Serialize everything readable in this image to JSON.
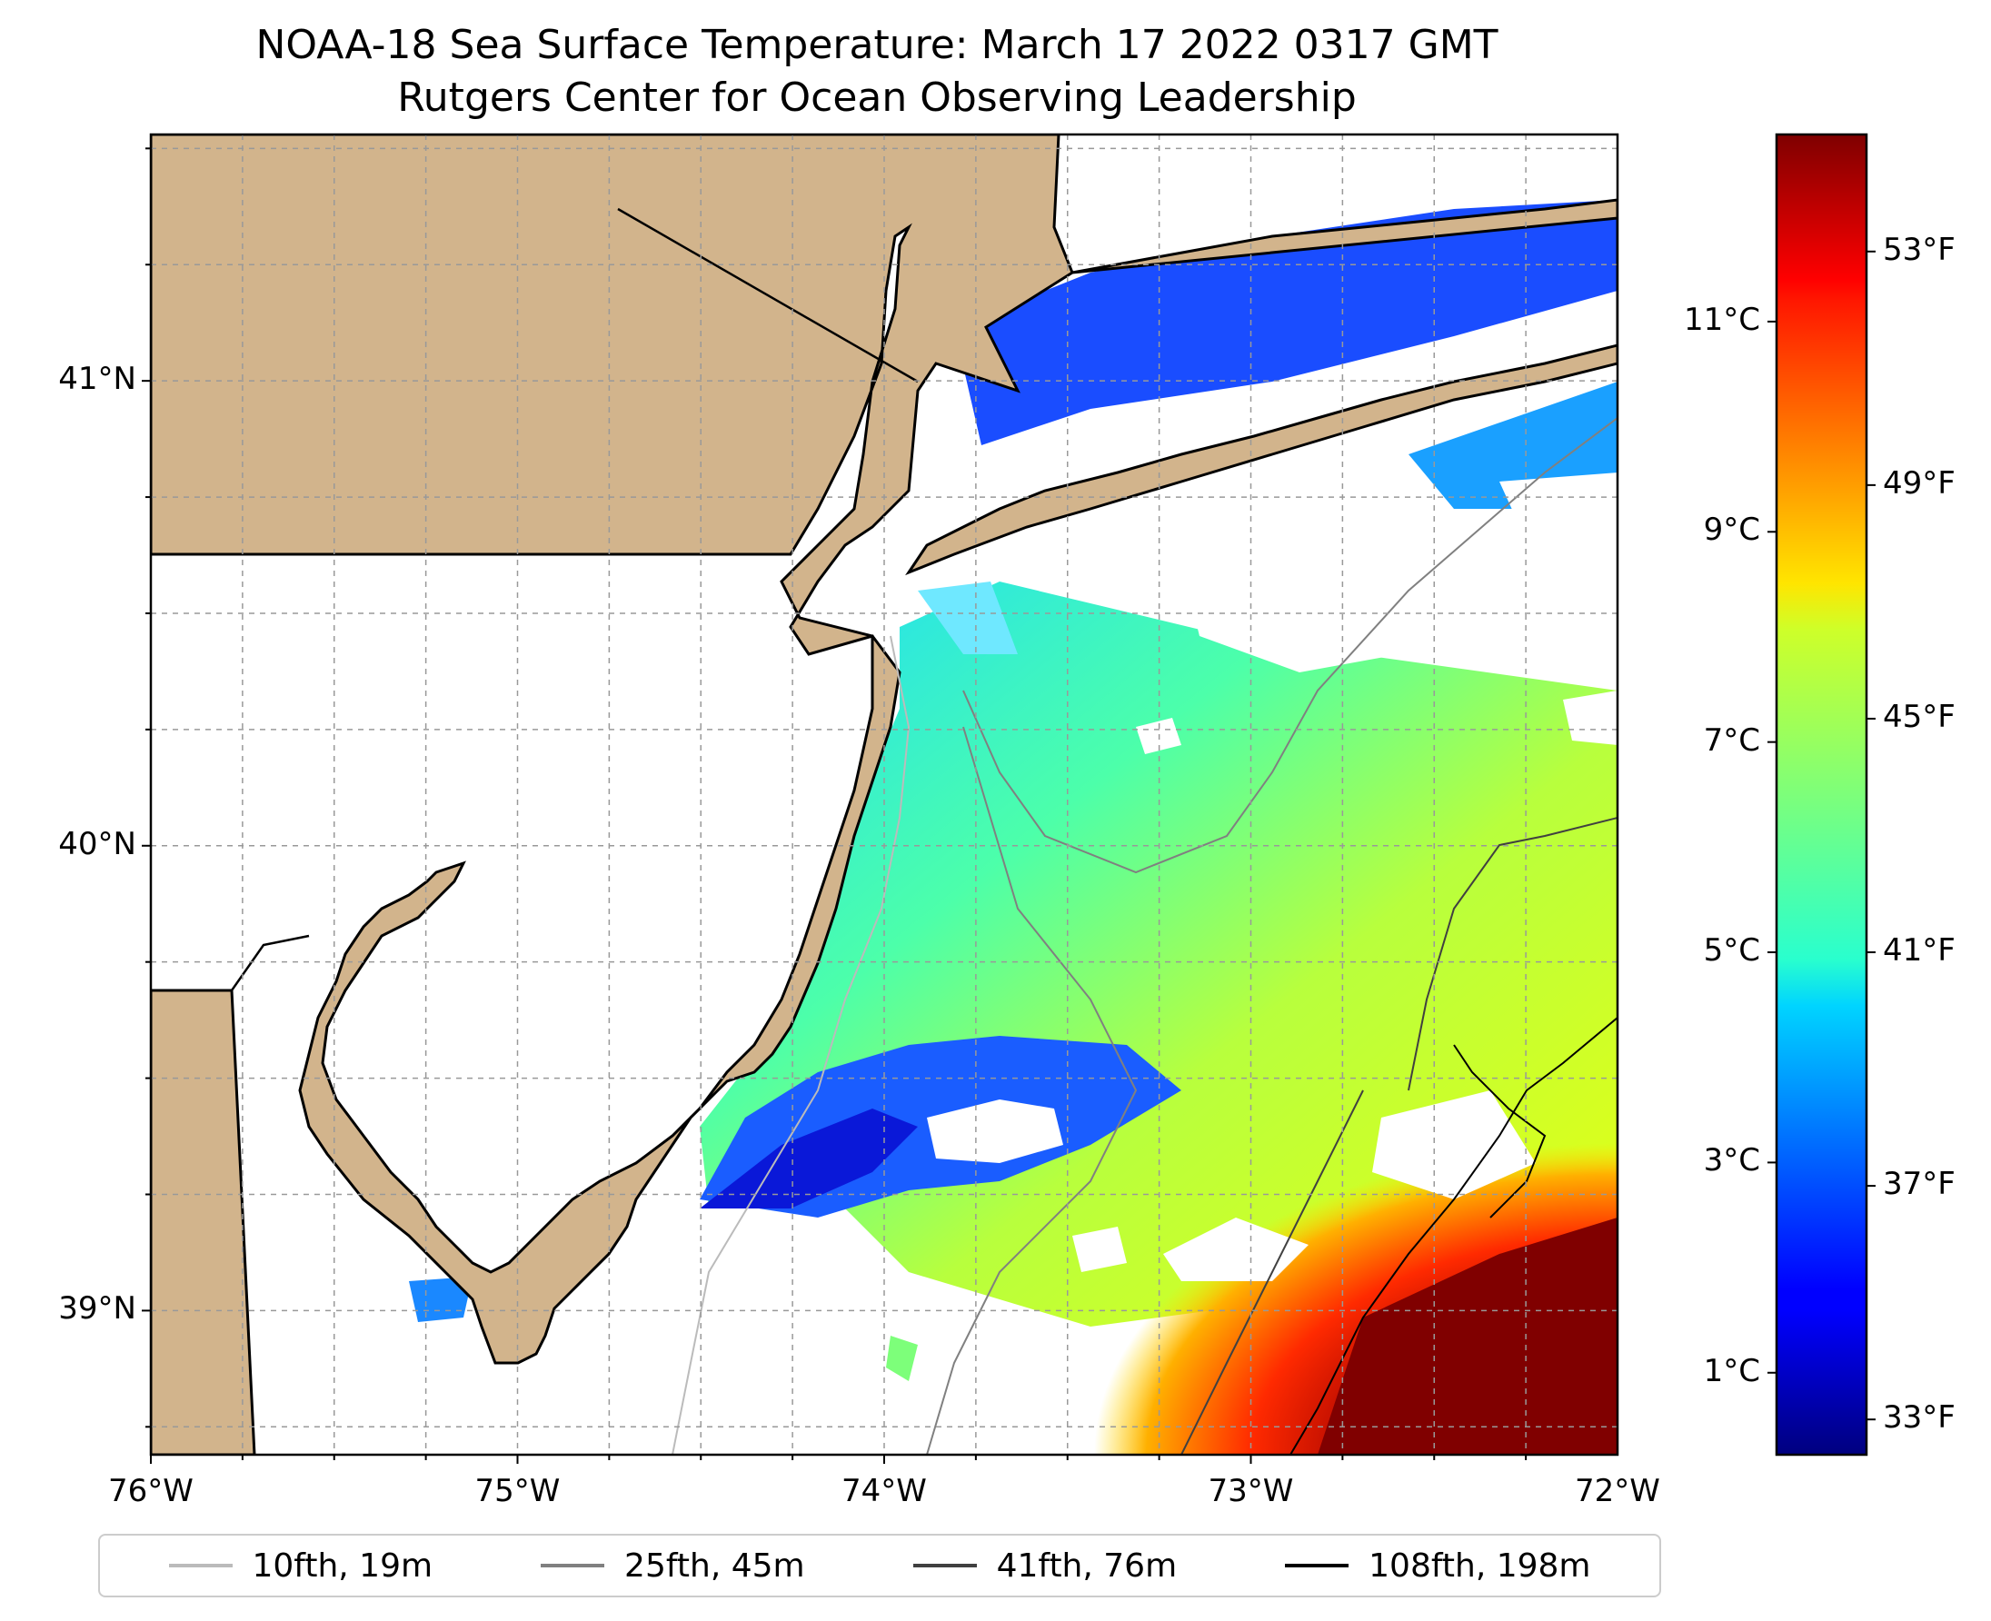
{
  "title": {
    "line1": "NOAA-18 Sea Surface Temperature: March 17 2022 0317 GMT",
    "line2": "Rutgers Center for Ocean Observing Leadership"
  },
  "map": {
    "lon_range": [
      -76,
      -72
    ],
    "lat_range": [
      38.69,
      41.53
    ],
    "x_ticks": [
      {
        "lon": -76,
        "label": "76°W"
      },
      {
        "lon": -75,
        "label": "75°W"
      },
      {
        "lon": -74,
        "label": "74°W"
      },
      {
        "lon": -73,
        "label": "73°W"
      },
      {
        "lon": -72,
        "label": "72°W"
      }
    ],
    "y_ticks": [
      {
        "lat": 39,
        "label": "39°N"
      },
      {
        "lat": 40,
        "label": "40°N"
      },
      {
        "lat": 41,
        "label": "41°N"
      }
    ],
    "land_color": "#d2b48c",
    "nodata_color": "#ffffff",
    "gridlines": true
  },
  "colorbar": {
    "range_c": [
      0.22,
      12.78
    ],
    "celsius_ticks": [
      {
        "value": 1,
        "label": "1°C"
      },
      {
        "value": 3,
        "label": "3°C"
      },
      {
        "value": 5,
        "label": "5°C"
      },
      {
        "value": 7,
        "label": "7°C"
      },
      {
        "value": 9,
        "label": "9°C"
      },
      {
        "value": 11,
        "label": "11°C"
      }
    ],
    "fahrenheit_ticks": [
      {
        "value": 33,
        "label": "33°F"
      },
      {
        "value": 37,
        "label": "37°F"
      },
      {
        "value": 41,
        "label": "41°F"
      },
      {
        "value": 45,
        "label": "45°F"
      },
      {
        "value": 49,
        "label": "49°F"
      },
      {
        "value": 53,
        "label": "53°F"
      }
    ],
    "colormap": "jet"
  },
  "legend": {
    "items": [
      {
        "label": "10fth, 19m",
        "color": "#bbbbbb"
      },
      {
        "label": "25fth, 45m",
        "color": "#808080"
      },
      {
        "label": "41fth, 76m",
        "color": "#404040"
      },
      {
        "label": "108fth, 198m",
        "color": "#000000"
      }
    ]
  }
}
